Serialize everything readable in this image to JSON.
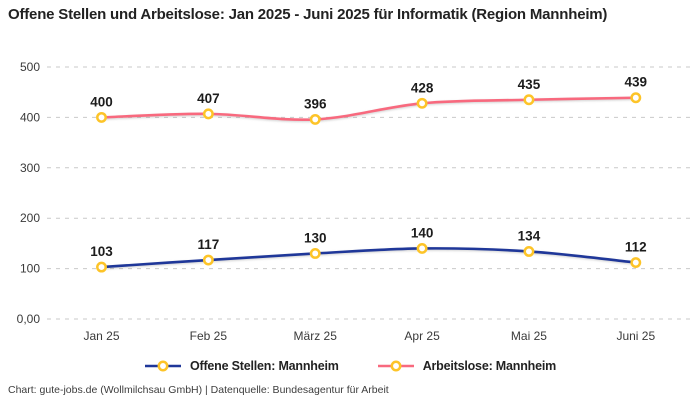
{
  "title": "Offene Stellen und Arbeitslose: Jan 2025 - Juni 2025 für Informatik (Region Mannheim)",
  "footer": "Chart: gute-jobs.de (Wollmilchsau GmbH) | Datenquelle: Bundesagentur für Arbeit",
  "colors": {
    "offene_stellen": "#1f3799",
    "arbeitslose": "#f8697e",
    "marker_stroke": "#fdc428",
    "marker_fill": "#ffffff",
    "grid": "#c9c9c9",
    "data_label": "#1c1c1c",
    "axis_text": "#3a3a3a"
  },
  "chart_data": {
    "type": "line",
    "title": "Offene Stellen und Arbeitslose: Jan 2025 - Juni 2025 für Informatik (Region Mannheim)",
    "categories": [
      "Jan 25",
      "Feb 25",
      "März 25",
      "Apr 25",
      "Mai 25",
      "Juni 25"
    ],
    "series": [
      {
        "name": "Offene Stellen: Mannheim",
        "values": [
          103,
          117,
          130,
          140,
          134,
          112
        ],
        "color": "#1f3799"
      },
      {
        "name": "Arbeitslose: Mannheim",
        "values": [
          400,
          407,
          396,
          428,
          435,
          439
        ],
        "color": "#f8697e"
      }
    ],
    "y_ticks": {
      "values": [
        0,
        100,
        200,
        300,
        400,
        500
      ],
      "labels": [
        "0,00",
        "100",
        "200",
        "300",
        "400",
        "500"
      ]
    },
    "ylim": [
      0,
      500
    ],
    "xlabel": "",
    "ylabel": "",
    "grid": "horizontal-dashed",
    "legend_position": "bottom",
    "marker": {
      "shape": "circle",
      "fill": "#ffffff",
      "stroke": "#fdc428"
    },
    "data_labels": "above-points"
  },
  "legend": {
    "items": [
      {
        "label": "Offene Stellen: Mannheim",
        "color": "#1f3799"
      },
      {
        "label": "Arbeitslose: Mannheim",
        "color": "#f8697e"
      }
    ]
  }
}
